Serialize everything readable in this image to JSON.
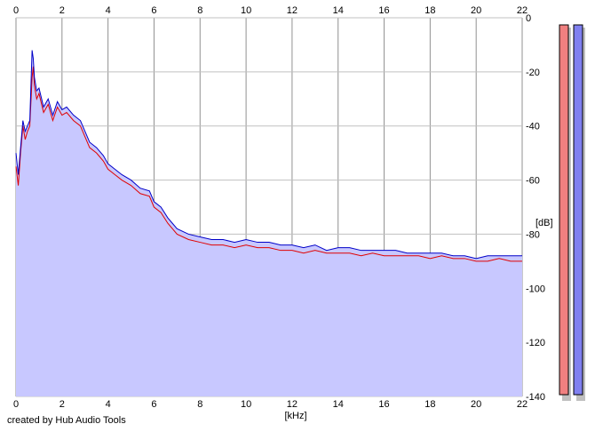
{
  "chart_data": {
    "type": "area",
    "title": "",
    "xlabel": "[kHz]",
    "ylabel": "[dB]",
    "xlim": [
      0,
      22
    ],
    "ylim": [
      -140,
      0
    ],
    "x_ticks": [
      "0",
      "2",
      "4",
      "6",
      "8",
      "10",
      "12",
      "14",
      "16",
      "18",
      "20",
      "22"
    ],
    "y_ticks": [
      "0",
      "-20",
      "-40",
      "-60",
      "-80",
      "-100",
      "-120",
      "-140"
    ],
    "grid": true,
    "legend": "none",
    "fill_color": "#c8c8ff",
    "series": [
      {
        "color": "#e00000",
        "x": [
          0.0,
          0.1,
          0.2,
          0.3,
          0.4,
          0.5,
          0.6,
          0.7,
          0.75,
          0.8,
          0.9,
          1.0,
          1.2,
          1.4,
          1.6,
          1.8,
          2.0,
          2.2,
          2.5,
          2.8,
          3.0,
          3.2,
          3.5,
          3.8,
          4.0,
          4.3,
          4.6,
          5.0,
          5.4,
          5.8,
          6.0,
          6.3,
          6.6,
          6.8,
          7.0,
          7.5,
          8.0,
          8.5,
          9.0,
          9.5,
          10.0,
          10.5,
          11.0,
          11.5,
          12.0,
          12.5,
          13.0,
          13.5,
          14.0,
          14.5,
          15.0,
          15.5,
          16.0,
          16.5,
          17.0,
          17.5,
          18.0,
          18.5,
          19.0,
          19.5,
          20.0,
          20.5,
          21.0,
          21.5,
          22.0
        ],
        "y": [
          -55,
          -62,
          -50,
          -40,
          -45,
          -42,
          -40,
          -22,
          -18,
          -25,
          -30,
          -28,
          -35,
          -32,
          -38,
          -33,
          -36,
          -35,
          -38,
          -40,
          -44,
          -48,
          -50,
          -53,
          -56,
          -58,
          -60,
          -62,
          -65,
          -66,
          -70,
          -72,
          -76,
          -78,
          -80,
          -82,
          -83,
          -84,
          -84,
          -85,
          -84,
          -85,
          -85,
          -86,
          -86,
          -87,
          -86,
          -87,
          -87,
          -87,
          -88,
          -87,
          -88,
          -88,
          -88,
          -88,
          -89,
          -88,
          -89,
          -89,
          -90,
          -90,
          -89,
          -90,
          -90
        ]
      },
      {
        "color": "#0000c8",
        "x": [
          0.0,
          0.1,
          0.2,
          0.3,
          0.4,
          0.5,
          0.6,
          0.7,
          0.75,
          0.8,
          0.9,
          1.0,
          1.2,
          1.4,
          1.6,
          1.8,
          2.0,
          2.2,
          2.5,
          2.8,
          3.0,
          3.2,
          3.5,
          3.8,
          4.0,
          4.3,
          4.6,
          5.0,
          5.4,
          5.8,
          6.0,
          6.3,
          6.6,
          6.8,
          7.0,
          7.5,
          8.0,
          8.5,
          9.0,
          9.5,
          10.0,
          10.5,
          11.0,
          11.5,
          12.0,
          12.5,
          13.0,
          13.5,
          14.0,
          14.5,
          15.0,
          15.5,
          16.0,
          16.5,
          17.0,
          17.5,
          18.0,
          18.5,
          19.0,
          19.5,
          20.0,
          20.5,
          21.0,
          21.5,
          22.0
        ],
        "y": [
          -50,
          -58,
          -48,
          -38,
          -42,
          -40,
          -38,
          -12,
          -15,
          -22,
          -27,
          -26,
          -33,
          -30,
          -36,
          -31,
          -34,
          -33,
          -36,
          -38,
          -42,
          -46,
          -48,
          -51,
          -54,
          -56,
          -58,
          -60,
          -63,
          -64,
          -68,
          -70,
          -74,
          -76,
          -78,
          -80,
          -81,
          -82,
          -82,
          -83,
          -82,
          -83,
          -83,
          -84,
          -84,
          -85,
          -84,
          -86,
          -85,
          -85,
          -86,
          -86,
          -86,
          -86,
          -87,
          -87,
          -87,
          -87,
          -88,
          -88,
          -89,
          -88,
          -88,
          -88,
          -88
        ]
      }
    ],
    "level_meters": [
      {
        "color": "#f08080"
      },
      {
        "color": "#8080f0"
      }
    ]
  },
  "footer": {
    "credit": "created by Hub Audio Tools"
  }
}
